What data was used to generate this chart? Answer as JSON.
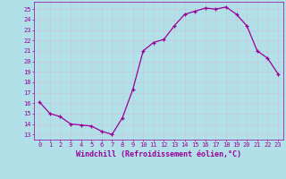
{
  "x": [
    0,
    1,
    2,
    3,
    4,
    5,
    6,
    7,
    8,
    9,
    10,
    11,
    12,
    13,
    14,
    15,
    16,
    17,
    18,
    19,
    20,
    21,
    22,
    23
  ],
  "y": [
    16.1,
    15.0,
    14.7,
    14.0,
    13.9,
    13.8,
    13.3,
    13.0,
    14.6,
    17.3,
    21.0,
    21.8,
    22.1,
    23.4,
    24.5,
    24.8,
    25.1,
    25.0,
    25.2,
    24.5,
    23.4,
    21.0,
    20.3,
    18.8
  ],
  "line_color": "#990099",
  "marker": "+",
  "bg_color": "#b2e0e8",
  "grid_color": "#c8c8d8",
  "xlabel": "Windchill (Refroidissement éolien,°C)",
  "ylabel_ticks": [
    13,
    14,
    15,
    16,
    17,
    18,
    19,
    20,
    21,
    22,
    23,
    24,
    25
  ],
  "xlim": [
    -0.5,
    23.5
  ],
  "ylim": [
    12.5,
    25.7
  ],
  "xticks": [
    0,
    1,
    2,
    3,
    4,
    5,
    6,
    7,
    8,
    9,
    10,
    11,
    12,
    13,
    14,
    15,
    16,
    17,
    18,
    19,
    20,
    21,
    22,
    23
  ],
  "font_color": "#990099",
  "tick_color": "#990099",
  "tick_fontsize": 5.0,
  "xlabel_fontsize": 6.0
}
